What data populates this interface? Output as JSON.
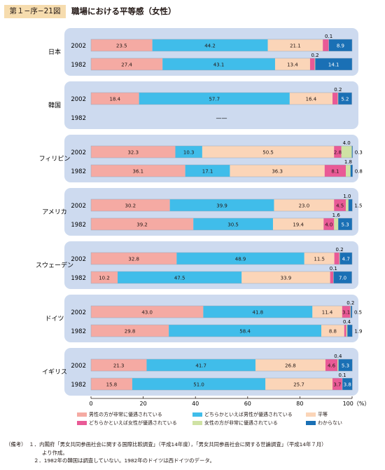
{
  "figure": {
    "tag": "第１−序−21図",
    "title": "職場における平等感（女性）"
  },
  "colors": {
    "cat1": "#f5aaa3",
    "cat2": "#40bdea",
    "cat3": "#fbd5b8",
    "cat4": "#e95a96",
    "cat5": "#cfe2a4",
    "cat6": "#1a70b5",
    "panel": "#cddaef"
  },
  "chart_data": {
    "type": "bar",
    "orientation": "horizontal",
    "stacked": true,
    "xlim": [
      0,
      100
    ],
    "x_ticks": [
      "0",
      "20",
      "40",
      "60",
      "80",
      "100（%）"
    ],
    "categories": [
      "男性の方が非常に優遇されている",
      "どちらかといえば男性が優遇されている",
      "平等",
      "どちらかといえば女性が優遇されている",
      "女性の方が非常に優遇されている",
      "わからない"
    ],
    "groups": [
      {
        "country": "日本",
        "rows": [
          {
            "year": "2002",
            "values": [
              23.5,
              44.2,
              21.1,
              2.2,
              0.1,
              8.9
            ]
          },
          {
            "year": "1982",
            "values": [
              27.4,
              43.1,
              13.4,
              1.8,
              0.2,
              14.1
            ]
          }
        ]
      },
      {
        "country": "韓国",
        "rows": [
          {
            "year": "2002",
            "values": [
              18.4,
              57.7,
              16.4,
              2.0,
              0.2,
              5.2
            ]
          },
          {
            "year": "1982",
            "values": null,
            "no_data_mark": "——"
          }
        ]
      },
      {
        "country": "フィリピン",
        "rows": [
          {
            "year": "2002",
            "values": [
              32.3,
              10.3,
              50.5,
              2.8,
              4.0,
              0.3
            ]
          },
          {
            "year": "1982",
            "values": [
              36.1,
              17.1,
              36.3,
              8.1,
              1.8,
              0.8
            ]
          }
        ]
      },
      {
        "country": "アメリカ",
        "rows": [
          {
            "year": "2002",
            "values": [
              30.2,
              39.9,
              23.0,
              4.5,
              1.0,
              1.5
            ]
          },
          {
            "year": "1982",
            "values": [
              39.2,
              30.5,
              19.4,
              4.0,
              1.6,
              5.3
            ]
          }
        ]
      },
      {
        "country": "スウェーデン",
        "rows": [
          {
            "year": "2002",
            "values": [
              32.8,
              48.9,
              11.5,
              1.9,
              0.2,
              4.7
            ]
          },
          {
            "year": "1982",
            "values": [
              10.2,
              47.5,
              33.9,
              1.2,
              0.1,
              7.0
            ]
          }
        ]
      },
      {
        "country": "ドイツ",
        "rows": [
          {
            "year": "2002",
            "values": [
              43.0,
              41.8,
              11.4,
              3.1,
              0.2,
              0.5
            ]
          },
          {
            "year": "1982",
            "values": [
              29.8,
              58.4,
              8.8,
              0.8,
              0.4,
              1.9
            ]
          }
        ]
      },
      {
        "country": "イギリス",
        "rows": [
          {
            "year": "2002",
            "values": [
              21.3,
              41.7,
              26.8,
              4.6,
              0.4,
              5.3
            ]
          },
          {
            "year": "1982",
            "values": [
              15.8,
              51.0,
              25.7,
              3.7,
              0.1,
              3.8
            ]
          }
        ]
      }
    ]
  },
  "notes": {
    "label": "（備考）",
    "line1": "１．内閣府「男女共同参画社会に関する国際比較調査」（平成14年度），「男女共同参画社会に関する世論調査」（平成14年７月）",
    "line1b": "より作成。",
    "line2": "２．1982年の韓国は調査していない。1982年のドイツは西ドイツのデータ。"
  }
}
